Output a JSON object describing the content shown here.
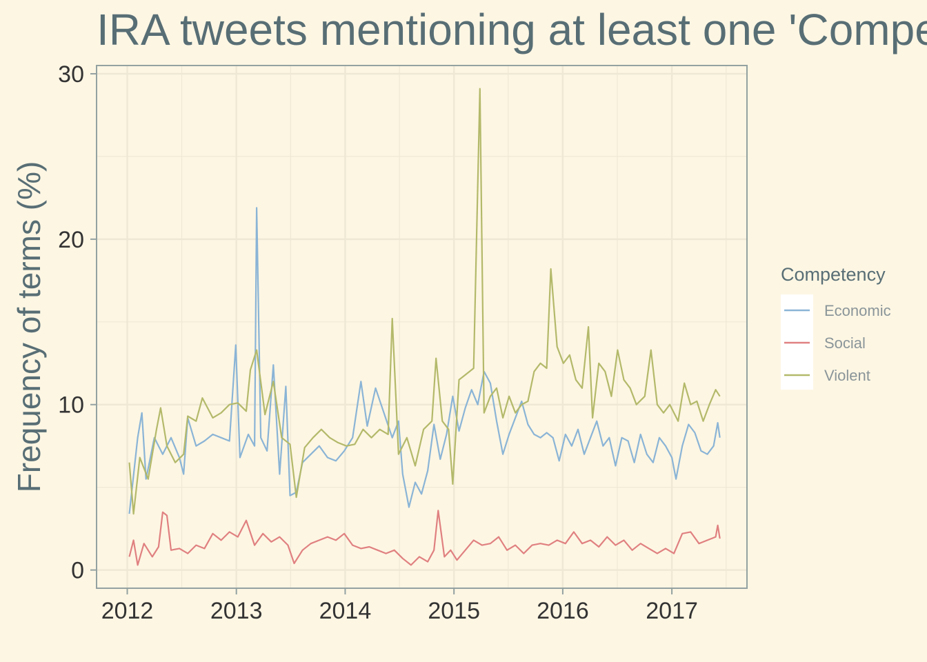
{
  "chart_data": {
    "type": "line",
    "title": "IRA tweets mentioning at least one 'Competency' term",
    "xlabel": "",
    "ylabel": "Frequency of terms (%)",
    "x_tick_labels": [
      "2012",
      "2013",
      "2014",
      "2015",
      "2016",
      "2017"
    ],
    "y_tick_labels": [
      "0",
      "10",
      "20",
      "30"
    ],
    "xlim": [
      "2011-09-20",
      "2017-09-10"
    ],
    "ylim": [
      -1.1,
      30.5
    ],
    "grid": true,
    "legend": {
      "title": "Competency",
      "position": "right"
    },
    "series": [
      {
        "name": "Economic",
        "color": "#8ab4d6",
        "points": [
          [
            "2012-01-08",
            3.4
          ],
          [
            "2012-02-05",
            8.0
          ],
          [
            "2012-02-19",
            9.5
          ],
          [
            "2012-03-04",
            5.5
          ],
          [
            "2012-04-01",
            8.0
          ],
          [
            "2012-04-29",
            7.0
          ],
          [
            "2012-05-27",
            8.0
          ],
          [
            "2012-06-24",
            6.8
          ],
          [
            "2012-07-08",
            5.8
          ],
          [
            "2012-07-22",
            9.2
          ],
          [
            "2012-08-19",
            7.5
          ],
          [
            "2012-09-16",
            7.8
          ],
          [
            "2012-10-14",
            8.2
          ],
          [
            "2012-11-11",
            8.0
          ],
          [
            "2012-12-09",
            7.8
          ],
          [
            "2012-12-30",
            13.6
          ],
          [
            "2013-01-13",
            6.8
          ],
          [
            "2013-02-10",
            8.2
          ],
          [
            "2013-03-03",
            7.5
          ],
          [
            "2013-03-10",
            21.9
          ],
          [
            "2013-03-24",
            8.0
          ],
          [
            "2013-04-14",
            7.2
          ],
          [
            "2013-05-05",
            12.4
          ],
          [
            "2013-05-26",
            5.8
          ],
          [
            "2013-06-16",
            11.1
          ],
          [
            "2013-06-30",
            4.5
          ],
          [
            "2013-07-21",
            4.7
          ],
          [
            "2013-08-11",
            6.5
          ],
          [
            "2013-09-08",
            7.0
          ],
          [
            "2013-10-06",
            7.5
          ],
          [
            "2013-11-03",
            6.8
          ],
          [
            "2013-12-01",
            6.6
          ],
          [
            "2013-12-29",
            7.2
          ],
          [
            "2014-01-26",
            8.0
          ],
          [
            "2014-02-23",
            11.4
          ],
          [
            "2014-03-16",
            8.7
          ],
          [
            "2014-04-13",
            11.0
          ],
          [
            "2014-05-11",
            9.5
          ],
          [
            "2014-06-08",
            8.0
          ],
          [
            "2014-06-29",
            9.0
          ],
          [
            "2014-07-13",
            5.8
          ],
          [
            "2014-08-03",
            3.8
          ],
          [
            "2014-08-24",
            5.3
          ],
          [
            "2014-09-14",
            4.6
          ],
          [
            "2014-10-05",
            6.0
          ],
          [
            "2014-10-26",
            8.8
          ],
          [
            "2014-11-16",
            6.7
          ],
          [
            "2014-12-07",
            8.2
          ],
          [
            "2014-12-28",
            10.5
          ],
          [
            "2015-01-18",
            8.4
          ],
          [
            "2015-02-08",
            9.8
          ],
          [
            "2015-03-01",
            10.9
          ],
          [
            "2015-03-22",
            10.0
          ],
          [
            "2015-04-12",
            12.0
          ],
          [
            "2015-05-03",
            11.3
          ],
          [
            "2015-05-24",
            9.0
          ],
          [
            "2015-06-14",
            7.0
          ],
          [
            "2015-07-05",
            8.2
          ],
          [
            "2015-07-26",
            9.2
          ],
          [
            "2015-08-16",
            10.2
          ],
          [
            "2015-09-06",
            8.8
          ],
          [
            "2015-09-27",
            8.2
          ],
          [
            "2015-10-18",
            8.0
          ],
          [
            "2015-11-08",
            8.3
          ],
          [
            "2015-11-29",
            8.0
          ],
          [
            "2015-12-20",
            6.6
          ],
          [
            "2016-01-10",
            8.2
          ],
          [
            "2016-01-31",
            7.5
          ],
          [
            "2016-02-21",
            8.5
          ],
          [
            "2016-03-13",
            7.0
          ],
          [
            "2016-04-03",
            8.0
          ],
          [
            "2016-04-24",
            9.0
          ],
          [
            "2016-05-15",
            7.5
          ],
          [
            "2016-06-05",
            8.0
          ],
          [
            "2016-06-26",
            6.3
          ],
          [
            "2016-07-17",
            8.0
          ],
          [
            "2016-08-07",
            7.8
          ],
          [
            "2016-08-28",
            6.5
          ],
          [
            "2016-09-18",
            8.2
          ],
          [
            "2016-10-09",
            7.0
          ],
          [
            "2016-10-30",
            6.5
          ],
          [
            "2016-11-20",
            8.0
          ],
          [
            "2016-12-11",
            7.5
          ],
          [
            "2017-01-01",
            6.8
          ],
          [
            "2017-01-15",
            5.5
          ],
          [
            "2017-02-05",
            7.5
          ],
          [
            "2017-02-26",
            8.8
          ],
          [
            "2017-03-19",
            8.3
          ],
          [
            "2017-04-09",
            7.2
          ],
          [
            "2017-04-30",
            7.0
          ],
          [
            "2017-05-21",
            7.5
          ],
          [
            "2017-06-04",
            8.9
          ],
          [
            "2017-06-11",
            8.0
          ]
        ]
      },
      {
        "name": "Social",
        "color": "#e08080",
        "points": [
          [
            "2012-01-08",
            0.8
          ],
          [
            "2012-01-22",
            1.8
          ],
          [
            "2012-02-05",
            0.3
          ],
          [
            "2012-02-26",
            1.6
          ],
          [
            "2012-03-25",
            0.8
          ],
          [
            "2012-04-15",
            1.4
          ],
          [
            "2012-04-29",
            3.5
          ],
          [
            "2012-05-13",
            3.3
          ],
          [
            "2012-05-27",
            1.2
          ],
          [
            "2012-06-24",
            1.3
          ],
          [
            "2012-07-22",
            1.0
          ],
          [
            "2012-08-19",
            1.5
          ],
          [
            "2012-09-16",
            1.3
          ],
          [
            "2012-10-14",
            2.2
          ],
          [
            "2012-11-11",
            1.8
          ],
          [
            "2012-12-09",
            2.3
          ],
          [
            "2013-01-06",
            2.0
          ],
          [
            "2013-02-03",
            3.0
          ],
          [
            "2013-03-03",
            1.5
          ],
          [
            "2013-03-31",
            2.2
          ],
          [
            "2013-04-28",
            1.7
          ],
          [
            "2013-05-26",
            2.0
          ],
          [
            "2013-06-23",
            1.5
          ],
          [
            "2013-07-14",
            0.4
          ],
          [
            "2013-08-11",
            1.2
          ],
          [
            "2013-09-08",
            1.6
          ],
          [
            "2013-10-06",
            1.8
          ],
          [
            "2013-11-03",
            2.0
          ],
          [
            "2013-12-01",
            1.8
          ],
          [
            "2013-12-29",
            2.2
          ],
          [
            "2014-01-26",
            1.5
          ],
          [
            "2014-02-23",
            1.3
          ],
          [
            "2014-03-23",
            1.4
          ],
          [
            "2014-04-20",
            1.2
          ],
          [
            "2014-05-18",
            1.0
          ],
          [
            "2014-06-15",
            1.2
          ],
          [
            "2014-07-13",
            0.7
          ],
          [
            "2014-08-10",
            0.3
          ],
          [
            "2014-09-07",
            0.8
          ],
          [
            "2014-10-05",
            0.5
          ],
          [
            "2014-10-26",
            1.2
          ],
          [
            "2014-11-09",
            3.6
          ],
          [
            "2014-11-30",
            0.8
          ],
          [
            "2014-12-21",
            1.2
          ],
          [
            "2015-01-11",
            0.6
          ],
          [
            "2015-02-08",
            1.2
          ],
          [
            "2015-03-08",
            1.8
          ],
          [
            "2015-04-05",
            1.5
          ],
          [
            "2015-05-03",
            1.6
          ],
          [
            "2015-05-31",
            2.0
          ],
          [
            "2015-06-28",
            1.2
          ],
          [
            "2015-07-26",
            1.5
          ],
          [
            "2015-08-23",
            1.0
          ],
          [
            "2015-09-20",
            1.5
          ],
          [
            "2015-10-18",
            1.6
          ],
          [
            "2015-11-15",
            1.5
          ],
          [
            "2015-12-13",
            1.8
          ],
          [
            "2016-01-10",
            1.6
          ],
          [
            "2016-02-07",
            2.3
          ],
          [
            "2016-03-06",
            1.6
          ],
          [
            "2016-04-03",
            1.8
          ],
          [
            "2016-05-01",
            1.4
          ],
          [
            "2016-05-29",
            2.0
          ],
          [
            "2016-06-26",
            1.5
          ],
          [
            "2016-07-24",
            1.8
          ],
          [
            "2016-08-21",
            1.2
          ],
          [
            "2016-09-18",
            1.6
          ],
          [
            "2016-10-16",
            1.3
          ],
          [
            "2016-11-13",
            1.0
          ],
          [
            "2016-12-11",
            1.3
          ],
          [
            "2017-01-08",
            1.0
          ],
          [
            "2017-02-05",
            2.2
          ],
          [
            "2017-03-05",
            2.3
          ],
          [
            "2017-04-02",
            1.6
          ],
          [
            "2017-04-30",
            1.8
          ],
          [
            "2017-05-28",
            2.0
          ],
          [
            "2017-06-04",
            2.7
          ],
          [
            "2017-06-11",
            1.9
          ]
        ]
      },
      {
        "name": "Violent",
        "color": "#b3b96a",
        "points": [
          [
            "2012-01-08",
            6.5
          ],
          [
            "2012-01-22",
            3.4
          ],
          [
            "2012-02-12",
            6.8
          ],
          [
            "2012-03-11",
            5.5
          ],
          [
            "2012-04-08",
            8.5
          ],
          [
            "2012-04-22",
            9.8
          ],
          [
            "2012-05-13",
            7.5
          ],
          [
            "2012-06-10",
            6.5
          ],
          [
            "2012-07-08",
            7.0
          ],
          [
            "2012-07-22",
            9.3
          ],
          [
            "2012-08-19",
            9.0
          ],
          [
            "2012-09-09",
            10.4
          ],
          [
            "2012-10-14",
            9.2
          ],
          [
            "2012-11-11",
            9.5
          ],
          [
            "2012-12-09",
            10.0
          ],
          [
            "2013-01-06",
            10.1
          ],
          [
            "2013-02-03",
            9.6
          ],
          [
            "2013-02-17",
            12.1
          ],
          [
            "2013-03-10",
            13.3
          ],
          [
            "2013-04-07",
            9.4
          ],
          [
            "2013-05-05",
            11.4
          ],
          [
            "2013-06-02",
            8.0
          ],
          [
            "2013-06-30",
            7.6
          ],
          [
            "2013-07-21",
            4.4
          ],
          [
            "2013-08-18",
            7.4
          ],
          [
            "2013-09-15",
            8.0
          ],
          [
            "2013-10-13",
            8.5
          ],
          [
            "2013-11-10",
            8.0
          ],
          [
            "2013-12-08",
            7.7
          ],
          [
            "2014-01-05",
            7.5
          ],
          [
            "2014-02-02",
            7.6
          ],
          [
            "2014-03-02",
            8.5
          ],
          [
            "2014-03-30",
            8.0
          ],
          [
            "2014-04-27",
            8.5
          ],
          [
            "2014-05-25",
            8.2
          ],
          [
            "2014-06-08",
            15.2
          ],
          [
            "2014-06-29",
            7.0
          ],
          [
            "2014-07-27",
            8.0
          ],
          [
            "2014-08-24",
            6.3
          ],
          [
            "2014-09-21",
            8.5
          ],
          [
            "2014-10-19",
            9.0
          ],
          [
            "2014-11-02",
            12.8
          ],
          [
            "2014-11-23",
            9.0
          ],
          [
            "2014-12-14",
            8.5
          ],
          [
            "2014-12-28",
            5.2
          ],
          [
            "2015-01-18",
            11.5
          ],
          [
            "2015-02-08",
            11.8
          ],
          [
            "2015-03-08",
            12.2
          ],
          [
            "2015-03-29",
            29.1
          ],
          [
            "2015-04-12",
            9.5
          ],
          [
            "2015-05-03",
            10.5
          ],
          [
            "2015-05-24",
            11.0
          ],
          [
            "2015-06-14",
            9.2
          ],
          [
            "2015-07-05",
            10.5
          ],
          [
            "2015-07-26",
            9.5
          ],
          [
            "2015-08-16",
            10.0
          ],
          [
            "2015-09-06",
            10.2
          ],
          [
            "2015-09-27",
            12.0
          ],
          [
            "2015-10-18",
            12.5
          ],
          [
            "2015-11-08",
            12.2
          ],
          [
            "2015-11-22",
            18.2
          ],
          [
            "2015-12-13",
            13.5
          ],
          [
            "2016-01-03",
            12.5
          ],
          [
            "2016-01-24",
            13.0
          ],
          [
            "2016-02-14",
            11.5
          ],
          [
            "2016-03-06",
            11.0
          ],
          [
            "2016-03-27",
            14.7
          ],
          [
            "2016-04-10",
            9.2
          ],
          [
            "2016-05-01",
            12.5
          ],
          [
            "2016-05-22",
            12.0
          ],
          [
            "2016-06-12",
            10.5
          ],
          [
            "2016-07-03",
            13.3
          ],
          [
            "2016-07-24",
            11.5
          ],
          [
            "2016-08-14",
            11.0
          ],
          [
            "2016-09-04",
            10.0
          ],
          [
            "2016-10-02",
            10.5
          ],
          [
            "2016-10-23",
            13.3
          ],
          [
            "2016-11-13",
            10.0
          ],
          [
            "2016-12-04",
            9.5
          ],
          [
            "2016-12-25",
            10.0
          ],
          [
            "2017-01-22",
            9.0
          ],
          [
            "2017-02-12",
            11.3
          ],
          [
            "2017-03-05",
            10.0
          ],
          [
            "2017-03-26",
            10.2
          ],
          [
            "2017-04-16",
            9.0
          ],
          [
            "2017-05-07",
            10.0
          ],
          [
            "2017-05-28",
            10.9
          ],
          [
            "2017-06-11",
            10.5
          ]
        ]
      }
    ]
  }
}
